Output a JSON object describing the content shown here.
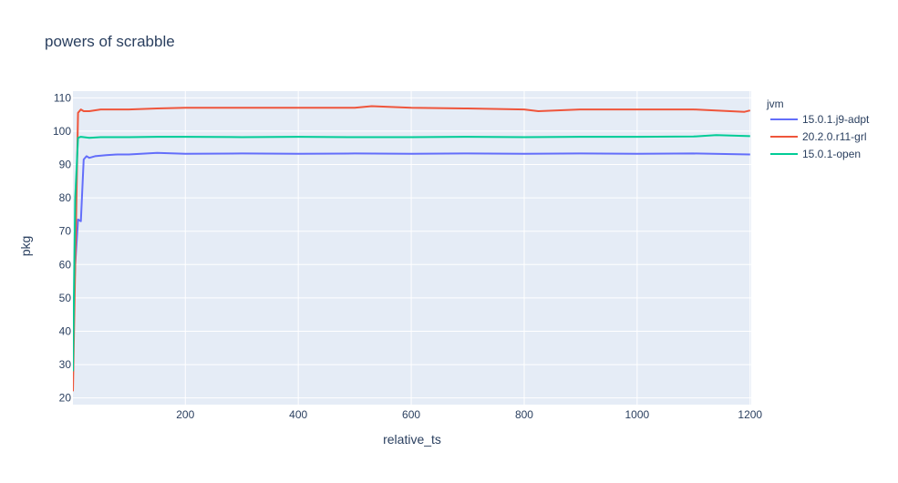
{
  "chart_data": {
    "type": "line",
    "title": "powers of scrabble",
    "xlabel": "relative_ts",
    "ylabel": "pkg",
    "xlim": [
      1,
      1202
    ],
    "ylim": [
      18,
      112
    ],
    "x_ticks": [
      200,
      400,
      600,
      800,
      1000,
      1200
    ],
    "y_ticks": [
      20,
      30,
      40,
      50,
      60,
      70,
      80,
      90,
      100,
      110
    ],
    "grid": true,
    "legend": {
      "title": "jvm",
      "position": "right"
    },
    "colors": {
      "plot_background": "#e5ecf6",
      "grid": "#ffffff",
      "text": "#2a3f5f"
    },
    "series": [
      {
        "name": "15.0.1.j9-adpt",
        "color": "#636efa",
        "x": [
          1,
          5,
          10,
          15,
          20,
          25,
          30,
          40,
          60,
          80,
          100,
          150,
          200,
          300,
          400,
          500,
          600,
          700,
          800,
          900,
          1000,
          1100,
          1200
        ],
        "y": [
          40,
          60,
          73.5,
          73,
          91.5,
          92.5,
          92,
          92.5,
          92.8,
          93,
          93,
          93.5,
          93.2,
          93.3,
          93.2,
          93.3,
          93.2,
          93.3,
          93.2,
          93.3,
          93.2,
          93.3,
          93
        ]
      },
      {
        "name": "20.2.0.r11-grl",
        "color": "#ef553b",
        "x": [
          1,
          5,
          10,
          15,
          20,
          30,
          50,
          100,
          150,
          200,
          300,
          400,
          500,
          530,
          600,
          700,
          800,
          825,
          900,
          1000,
          1100,
          1190,
          1200
        ],
        "y": [
          22,
          60,
          105.5,
          106.5,
          106,
          106,
          106.5,
          106.5,
          106.8,
          107,
          107,
          107,
          107,
          107.5,
          107,
          106.8,
          106.5,
          106,
          106.5,
          106.5,
          106.5,
          105.8,
          106.2
        ]
      },
      {
        "name": "15.0.1-open",
        "color": "#00cc96",
        "x": [
          1,
          5,
          10,
          15,
          20,
          30,
          50,
          100,
          150,
          200,
          300,
          400,
          500,
          600,
          700,
          800,
          900,
          1000,
          1100,
          1140,
          1200
        ],
        "y": [
          28,
          80,
          98,
          98.3,
          98.2,
          98,
          98.2,
          98.2,
          98.3,
          98.3,
          98.2,
          98.3,
          98.2,
          98.2,
          98.3,
          98.2,
          98.3,
          98.3,
          98.4,
          98.8,
          98.5
        ]
      }
    ]
  }
}
